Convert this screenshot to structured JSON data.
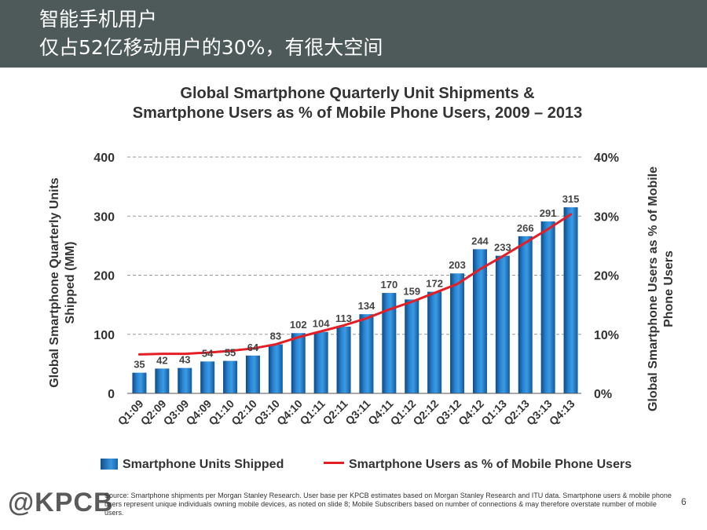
{
  "header": {
    "line1": "智能手机用户",
    "line2": "仅占52亿移动用户的30%，有很大空间"
  },
  "chart_data": {
    "type": "bar",
    "title_line1": "Global Smartphone Quarterly Unit Shipments &",
    "title_line2": "Smartphone Users as % of Mobile Phone Users, 2009 – 2013",
    "ylabel": "Global Smartphone Quarterly Units Shipped (MM)",
    "y2label": "Global Smartphone Users as % of Mobile Phone Users",
    "ylim": [
      0,
      400
    ],
    "y2lim": [
      0,
      40
    ],
    "yticks": [
      "0",
      "100",
      "200",
      "300",
      "400"
    ],
    "y2ticks": [
      "0%",
      "10%",
      "20%",
      "30%",
      "40%"
    ],
    "grid": "horizontal-dashed",
    "categories": [
      "Q1:09",
      "Q2:09",
      "Q3:09",
      "Q4:09",
      "Q1:10",
      "Q2:10",
      "Q3:10",
      "Q4:10",
      "Q1:11",
      "Q2:11",
      "Q3:11",
      "Q4:11",
      "Q1:12",
      "Q2:12",
      "Q3:12",
      "Q4:12",
      "Q1:13",
      "Q2:13",
      "Q3:13",
      "Q4:13"
    ],
    "series": [
      {
        "name": "Smartphone Units Shipped",
        "type": "bar",
        "axis": "left",
        "color": "#1f78c8",
        "values": [
          35,
          42,
          43,
          54,
          55,
          64,
          83,
          102,
          104,
          113,
          134,
          170,
          159,
          172,
          203,
          244,
          233,
          266,
          291,
          315
        ]
      },
      {
        "name": "Smartphone Users as % of Mobile Phone Users",
        "type": "line",
        "axis": "right",
        "color": "#e31e24",
        "values": [
          6.6,
          6.7,
          6.7,
          6.9,
          7.2,
          7.6,
          8.3,
          9.5,
          10.5,
          11.5,
          12.7,
          14.2,
          15.5,
          17.0,
          18.5,
          21.0,
          23.2,
          25.5,
          27.8,
          30.3
        ]
      }
    ],
    "legend_position": "bottom"
  },
  "footer": {
    "logo": "@KPCB",
    "source": "Source: Smartphone shipments per Morgan Stanley Research. User base per KPCB estimates based on Morgan Stanley Research and ITU data. Smartphone users & mobile phone users represent unique individuals owning mobile devices, as noted on slide 8; Mobile Subscribers based on number of connections & may therefore overstate number of mobile users.",
    "page_number": "6"
  }
}
